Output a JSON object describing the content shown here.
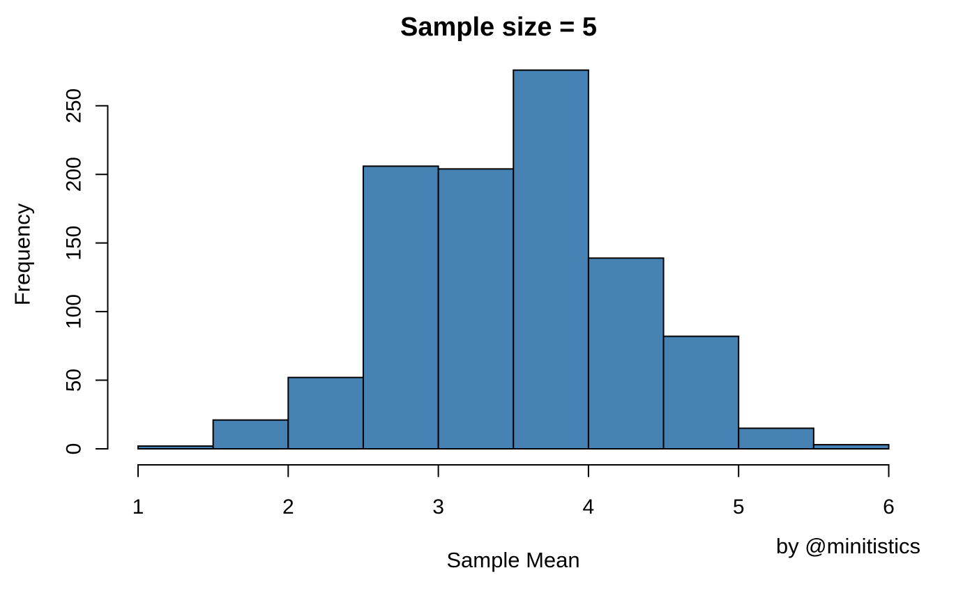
{
  "chart_data": {
    "type": "bar",
    "subtype": "histogram",
    "title": "Sample size = 5",
    "xlabel": "Sample Mean",
    "ylabel": "Frequency",
    "annotation": "by @minitistics",
    "bin_edges": [
      1.0,
      1.5,
      2.0,
      2.5,
      3.0,
      3.5,
      4.0,
      4.5,
      5.0,
      5.5,
      6.0
    ],
    "values": [
      2,
      21,
      52,
      206,
      204,
      276,
      139,
      82,
      15,
      3
    ],
    "x_ticks": [
      "1",
      "2",
      "3",
      "4",
      "5",
      "6"
    ],
    "x_tick_values": [
      1,
      2,
      3,
      4,
      5,
      6
    ],
    "y_ticks": [
      "0",
      "50",
      "100",
      "150",
      "200",
      "250"
    ],
    "y_tick_values": [
      0,
      50,
      100,
      150,
      200,
      250
    ],
    "xlim": [
      1,
      6
    ],
    "ylim": [
      0,
      250
    ],
    "grid": false,
    "legend": "none",
    "bar_fill": "#4682B4",
    "bar_stroke": "#000000",
    "axis_color": "#000000",
    "background": "#ffffff"
  }
}
